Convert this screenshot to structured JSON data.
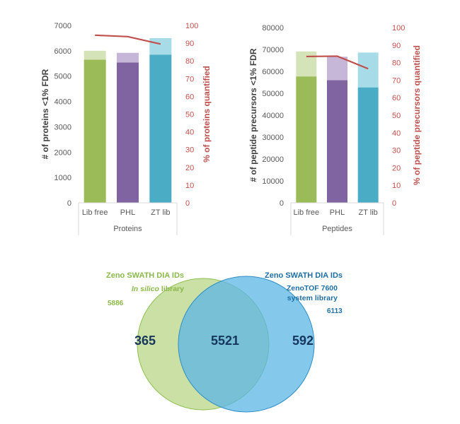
{
  "colors": {
    "green": "#9bbb59",
    "green_light": "#d5e3b8",
    "purple": "#8064a2",
    "purple_light": "#c6b7d8",
    "blue": "#4bacc6",
    "blue_light": "#a8dbe8",
    "line_red": "#c0504d",
    "axis_text": "#595959",
    "venn_green_text": "#8ab84a",
    "venn_blue_text": "#1f6fa3",
    "venn_count": "#17365d"
  },
  "chart_data": [
    {
      "type": "bar",
      "stacked": true,
      "categories": [
        "Lib free",
        "PHL",
        "ZT lib"
      ],
      "group_label": "Proteins",
      "ylabel": "# of proteins <1% FDR",
      "y2label": "% of proteins quantified",
      "ylim": [
        0,
        7000
      ],
      "yticks": [
        0,
        1000,
        2000,
        3000,
        4000,
        5000,
        6000,
        7000
      ],
      "y2lim": [
        0,
        100
      ],
      "y2ticks": [
        0,
        10,
        20,
        30,
        40,
        50,
        60,
        70,
        80,
        90,
        100
      ],
      "series": [
        {
          "values": [
            5650,
            5540,
            5850
          ]
        },
        {
          "values": [
            350,
            380,
            650
          ]
        }
      ],
      "line": {
        "values": [
          94.5,
          93.7,
          89.5
        ]
      }
    },
    {
      "type": "bar",
      "stacked": true,
      "categories": [
        "Lib free",
        "PHL",
        "ZT lib"
      ],
      "group_label": "Peptides",
      "ylabel": "# of peptide precursors <1% FDR",
      "y2label": "% of peptide precursors quantified",
      "ylim": [
        0,
        80000
      ],
      "yticks": [
        0,
        10000,
        20000,
        30000,
        40000,
        50000,
        60000,
        70000,
        80000
      ],
      "y2lim": [
        0,
        100
      ],
      "y2ticks": [
        0,
        10,
        20,
        30,
        40,
        50,
        60,
        70,
        80,
        90,
        100
      ],
      "series": [
        {
          "values": [
            57700,
            56000,
            52700
          ]
        },
        {
          "values": [
            11400,
            10700,
            15900
          ]
        }
      ],
      "line": {
        "values": [
          83.5,
          83.7,
          76.5
        ]
      }
    }
  ],
  "venn": {
    "left_title": "Zeno SWATH DIA IDs",
    "left_subtitle_italic": "In silico",
    "left_subtitle_rest": " library",
    "left_total": "5886",
    "right_title": "Zeno SWATH DIA IDs",
    "right_line2": "ZenoTOF 7600",
    "right_line3": "system library",
    "right_total": "6113",
    "only_left": "365",
    "overlap": "5521",
    "only_right": "592"
  }
}
